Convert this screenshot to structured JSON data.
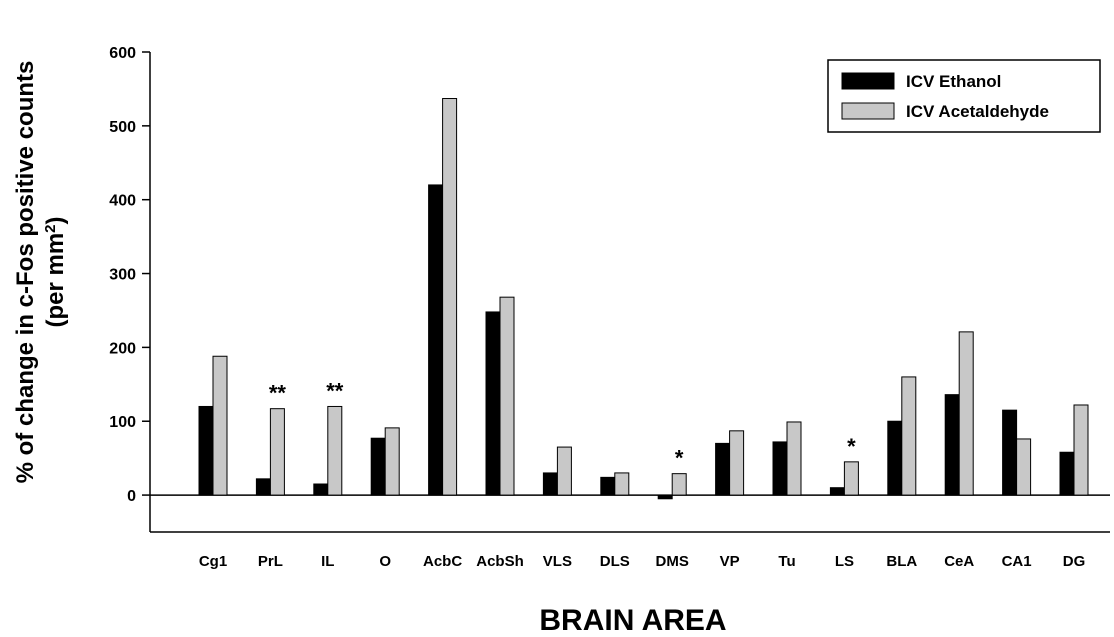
{
  "chart_data": {
    "type": "bar",
    "xlabel": "BRAIN AREA",
    "ylabel_line1": "% of change in c-Fos  positive counts",
    "ylabel_line2_prefix": "(per mm",
    "ylabel_line2_sup": "2",
    "ylabel_line2_suffix": ")",
    "ylim": [
      -50,
      600
    ],
    "yticks": [
      0,
      100,
      200,
      300,
      400,
      500,
      600
    ],
    "grid": false,
    "legend_position": "top-right",
    "categories": [
      "Cg1",
      "PrL",
      "IL",
      "O",
      "AcbC",
      "AcbSh",
      "VLS",
      "DLS",
      "DMS",
      "VP",
      "Tu",
      "LS",
      "BLA",
      "CeA",
      "CA1",
      "DG"
    ],
    "series": [
      {
        "name": "ICV Ethanol",
        "color": "#000000",
        "values": [
          120,
          22,
          15,
          77,
          420,
          248,
          30,
          24,
          -5,
          70,
          72,
          10,
          100,
          136,
          115,
          58
        ]
      },
      {
        "name": "ICV Acetaldehyde",
        "color": "#c8c8c8",
        "values": [
          188,
          117,
          120,
          91,
          537,
          268,
          65,
          30,
          29,
          87,
          99,
          45,
          160,
          221,
          76,
          122
        ]
      }
    ],
    "annotations": [
      {
        "category": "PrL",
        "series": 1,
        "text": "**"
      },
      {
        "category": "IL",
        "series": 1,
        "text": "**"
      },
      {
        "category": "DMS",
        "series": 1,
        "text": "*"
      },
      {
        "category": "LS",
        "series": 1,
        "text": "*"
      }
    ]
  }
}
